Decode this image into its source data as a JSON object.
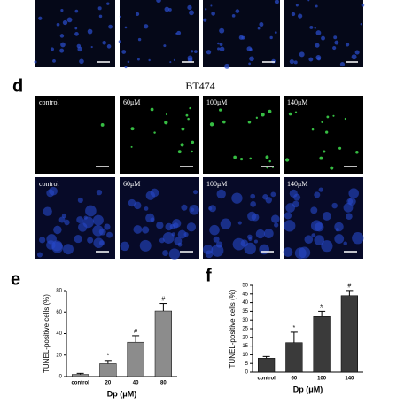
{
  "panel_d": {
    "label": "d",
    "title": "BT474",
    "rows": [
      [
        "control",
        "60μM",
        "100μM",
        "140μM"
      ],
      [
        "control",
        "60μM",
        "100μM",
        "140μM"
      ]
    ]
  },
  "chart_data": [
    {
      "type": "bar",
      "label": "e",
      "ylabel": "TUNEL-positive cells (%)",
      "xlabel": "Dp (μM)",
      "categories": [
        "control",
        "20",
        "40",
        "80"
      ],
      "values": [
        2,
        12,
        32,
        61
      ],
      "errors": [
        1,
        3,
        6,
        7
      ],
      "annotations": [
        null,
        "*",
        "#",
        "#"
      ],
      "color": "#8c8c8c",
      "ylim": [
        0,
        80
      ],
      "yticks": [
        0,
        20,
        40,
        60,
        80
      ]
    },
    {
      "type": "bar",
      "label": "f",
      "ylabel": "TUNEL-positive cells (%)",
      "xlabel": "Dp (μM)",
      "categories": [
        "control",
        "60",
        "100",
        "140"
      ],
      "values": [
        8,
        17,
        32,
        44
      ],
      "errors": [
        1,
        6,
        3,
        3
      ],
      "annotations": [
        null,
        "*",
        "#",
        "#"
      ],
      "color": "#3a3a3a",
      "ylim": [
        0,
        50
      ],
      "yticks": [
        0,
        5,
        10,
        15,
        20,
        25,
        30,
        35,
        40,
        45,
        50
      ]
    }
  ]
}
